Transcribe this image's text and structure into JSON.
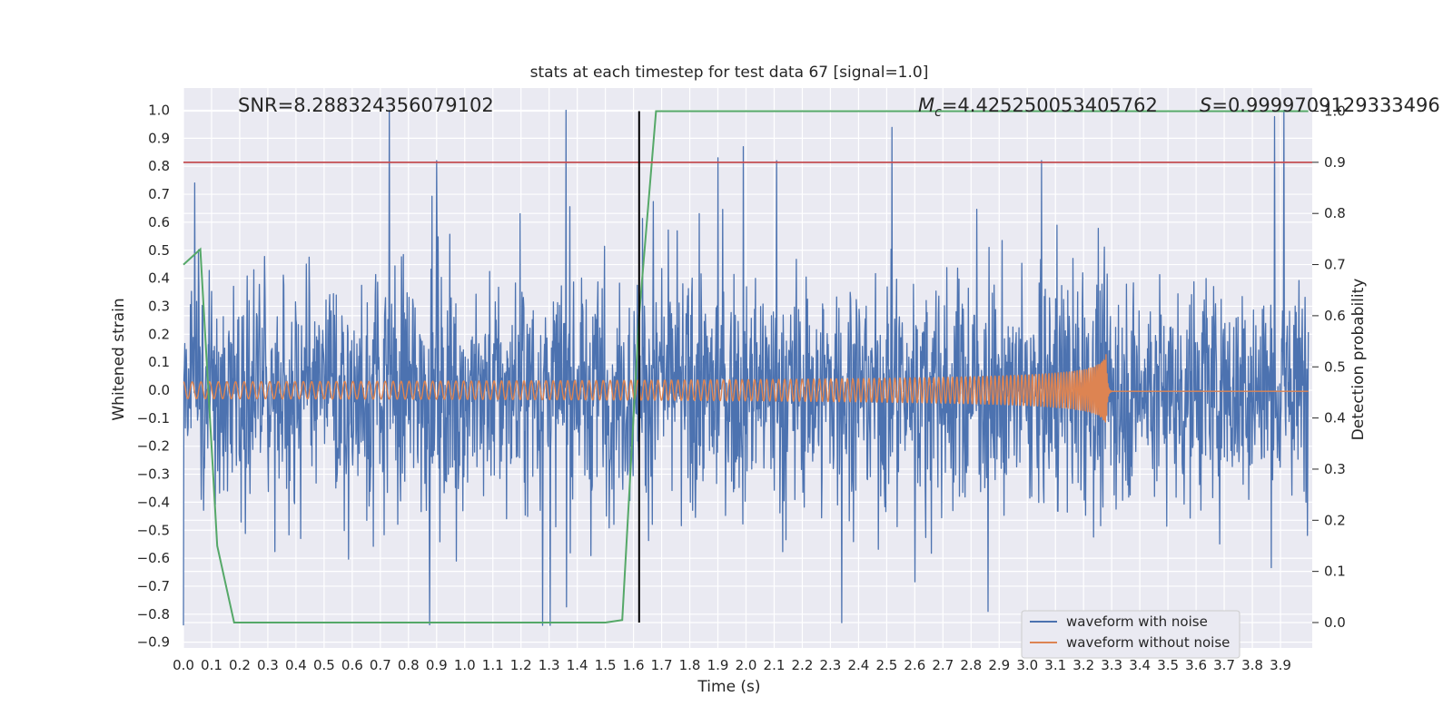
{
  "chart_data": {
    "type": "line",
    "title": "stats at each timestep for test data 67 [signal=1.0]",
    "xlabel": "Time (s)",
    "ylabel": "Whitened strain",
    "y2label": "Detection probability",
    "xlim": [
      0.0,
      3.999
    ],
    "ylim": [
      -0.9,
      1.0
    ],
    "y2lim": [
      0.0,
      1.0
    ],
    "x_ticks": [
      "0.0",
      "0.1",
      "0.2",
      "0.3",
      "0.4",
      "0.5",
      "0.6",
      "0.7",
      "0.8",
      "0.9",
      "1.0",
      "1.1",
      "1.2",
      "1.3",
      "1.4",
      "1.5",
      "1.6",
      "1.7",
      "1.8",
      "1.9",
      "2.0",
      "2.1",
      "2.2",
      "2.3",
      "2.4",
      "2.5",
      "2.6",
      "2.7",
      "2.8",
      "2.9",
      "3.0",
      "3.1",
      "3.2",
      "3.3",
      "3.4",
      "3.5",
      "3.6",
      "3.7",
      "3.8",
      "3.9"
    ],
    "y_ticks": [
      "1.0",
      "0.9",
      "0.8",
      "0.7",
      "0.6",
      "0.5",
      "0.4",
      "0.3",
      "0.2",
      "0.1",
      "0.0",
      "−0.1",
      "−0.2",
      "−0.3",
      "−0.4",
      "−0.5",
      "−0.6",
      "−0.7",
      "−0.8",
      "−0.9"
    ],
    "y2_ticks": [
      "1.0",
      "0.9",
      "0.8",
      "0.7",
      "0.6",
      "0.5",
      "0.4",
      "0.3",
      "0.2",
      "0.1",
      "0.0"
    ],
    "annotations": {
      "snr": "SNR=8.288324356079102",
      "mc_symbol": "M",
      "mc_sub": "c",
      "mc_value": "=4.425250053405762",
      "s_symbol": "S",
      "s_value": "=0.9999709129333496"
    },
    "series": [
      {
        "name": "waveform with noise",
        "color": "#4c72b0",
        "axis": "left",
        "x_range": [
          0.0,
          3.999
        ],
        "y_envelope": [
          -0.84,
          1.0
        ],
        "notable_peaks": [
          {
            "x": 0.04,
            "y": 0.74
          },
          {
            "x": 0.9,
            "y": 0.82
          },
          {
            "x": 1.36,
            "y": 1.0
          },
          {
            "x": 1.9,
            "y": 0.83
          },
          {
            "x": 1.99,
            "y": 0.87
          },
          {
            "x": 3.05,
            "y": 0.82
          },
          {
            "x": 0.0,
            "y": -0.84
          },
          {
            "x": 2.34,
            "y": -0.83
          },
          {
            "x": 2.86,
            "y": -0.79
          }
        ]
      },
      {
        "name": "waveform without noise",
        "color": "#dd8452",
        "axis": "left",
        "x_range": [
          0.0,
          3.999
        ],
        "amplitude_start": 0.03,
        "amplitude_peak": 0.16,
        "merger_time": 3.28,
        "freq_start_hz": 32
      },
      {
        "color": "#55a868",
        "axis": "right",
        "x": [
          0.0,
          0.06,
          0.12,
          0.18,
          1.5,
          1.56,
          1.62,
          1.68,
          3.999
        ],
        "y": [
          0.7,
          0.73,
          0.15,
          0.0,
          0.0,
          0.005,
          0.6,
          1.0,
          1.0
        ]
      }
    ],
    "hlines": [
      {
        "y2": 0.9,
        "color": "#c44e52"
      }
    ],
    "vlines": [
      {
        "x": 1.62,
        "color": "#000000",
        "y2_from": 0.0,
        "y2_to": 1.0
      }
    ],
    "legend": "bottom-right",
    "grid": true
  }
}
